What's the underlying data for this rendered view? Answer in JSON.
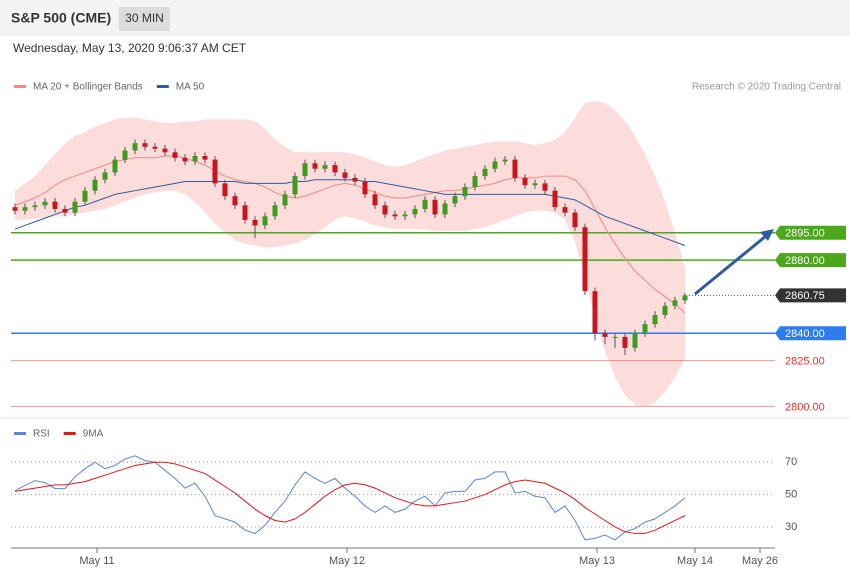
{
  "header": {
    "title": "S&P 500 (CME)",
    "interval": "30 MIN",
    "timestamp": "Wednesday, May 13, 2020 9:06:37 AM CET",
    "credit": "Research © 2020 Trading Central"
  },
  "chart_data": [
    {
      "type": "candlestick",
      "up_color": "#3f9a1e",
      "down_color": "#c8141e",
      "open": [
        2909,
        2907,
        2909,
        2910,
        2912,
        2908,
        2906,
        2912,
        2918,
        2924,
        2928,
        2935,
        2940,
        2944,
        2942,
        2941,
        2939,
        2936,
        2934,
        2937,
        2935,
        2922,
        2915,
        2910,
        2902,
        2899,
        2904,
        2910,
        2916,
        2926,
        2933,
        2930,
        2932,
        2928,
        2925,
        2923,
        2916,
        2910,
        2905,
        2904,
        2905,
        2908,
        2913,
        2905,
        2911,
        2915,
        2920,
        2926,
        2930,
        2934,
        2935,
        2925,
        2921,
        2922,
        2918,
        2909,
        2906,
        2898,
        2863,
        2840,
        2838,
        2838,
        2832,
        2840,
        2845,
        2850,
        2855,
        2858
      ],
      "high": [
        2911,
        2911,
        2912,
        2914,
        2914,
        2910,
        2914,
        2920,
        2926,
        2930,
        2937,
        2942,
        2946,
        2946,
        2944,
        2943,
        2941,
        2938,
        2939,
        2939,
        2937,
        2924,
        2917,
        2912,
        2904,
        2906,
        2912,
        2918,
        2928,
        2935,
        2935,
        2934,
        2934,
        2930,
        2927,
        2925,
        2918,
        2912,
        2907,
        2907,
        2910,
        2915,
        2915,
        2913,
        2917,
        2922,
        2928,
        2932,
        2936,
        2937,
        2937,
        2927,
        2924,
        2924,
        2920,
        2911,
        2908,
        2900,
        2865,
        2842,
        2840,
        2840,
        2842,
        2847,
        2852,
        2857,
        2860,
        2862
      ],
      "low": [
        2905,
        2905,
        2907,
        2908,
        2906,
        2904,
        2904,
        2910,
        2916,
        2922,
        2926,
        2933,
        2938,
        2940,
        2939,
        2937,
        2934,
        2932,
        2932,
        2933,
        2920,
        2913,
        2908,
        2900,
        2892,
        2897,
        2902,
        2908,
        2914,
        2924,
        2928,
        2928,
        2926,
        2923,
        2921,
        2914,
        2908,
        2903,
        2902,
        2902,
        2903,
        2906,
        2903,
        2903,
        2909,
        2913,
        2918,
        2924,
        2928,
        2932,
        2923,
        2919,
        2919,
        2916,
        2907,
        2904,
        2896,
        2861,
        2836,
        2834,
        2832,
        2828,
        2830,
        2838,
        2843,
        2848,
        2853,
        2856
      ],
      "close": [
        2907,
        2909,
        2910,
        2912,
        2908,
        2906,
        2912,
        2918,
        2924,
        2928,
        2935,
        2940,
        2944,
        2942,
        2941,
        2939,
        2936,
        2934,
        2937,
        2935,
        2922,
        2915,
        2910,
        2902,
        2899,
        2904,
        2910,
        2916,
        2926,
        2933,
        2930,
        2932,
        2928,
        2925,
        2923,
        2916,
        2910,
        2905,
        2904,
        2905,
        2908,
        2913,
        2905,
        2911,
        2915,
        2920,
        2926,
        2930,
        2934,
        2935,
        2925,
        2921,
        2922,
        2918,
        2909,
        2906,
        2898,
        2863,
        2840,
        2838,
        2838,
        2832,
        2840,
        2845,
        2850,
        2855,
        2858,
        2860.75
      ],
      "series": [
        {
          "name": "MA 20 + Bollinger Bands",
          "color": "#f08a84",
          "band_color": "#fddcdc",
          "values": [
            2910,
            2912,
            2914,
            2917,
            2921,
            2924,
            2926,
            2928,
            2930,
            2932,
            2934,
            2935,
            2936,
            2936,
            2936,
            2937,
            2937,
            2936,
            2934,
            2932,
            2929,
            2926,
            2924,
            2923,
            2922,
            2920,
            2917,
            2915,
            2914,
            2915,
            2917,
            2919,
            2921,
            2922,
            2921,
            2919,
            2917,
            2915,
            2914,
            2914,
            2915,
            2916,
            2917,
            2918,
            2918,
            2919,
            2920,
            2921,
            2922,
            2924,
            2925,
            2925,
            2925,
            2926,
            2926,
            2926,
            2924,
            2918,
            2908,
            2898,
            2889,
            2881,
            2874,
            2869,
            2864,
            2860,
            2856,
            2851
          ],
          "upper": [
            2918,
            2922,
            2926,
            2932,
            2938,
            2944,
            2948,
            2950,
            2953,
            2955,
            2957,
            2958,
            2958,
            2957,
            2956,
            2955,
            2955,
            2956,
            2956,
            2957,
            2957,
            2957,
            2957,
            2957,
            2956,
            2952,
            2946,
            2942,
            2939,
            2939,
            2939,
            2939,
            2939,
            2939,
            2938,
            2936,
            2934,
            2932,
            2931,
            2932,
            2934,
            2936,
            2938,
            2940,
            2941,
            2942,
            2943,
            2944,
            2945,
            2945,
            2945,
            2944,
            2943,
            2944,
            2946,
            2950,
            2958,
            2966,
            2967,
            2966,
            2962,
            2956,
            2948,
            2938,
            2926,
            2912,
            2895,
            2876
          ],
          "lower": [
            2902,
            2902,
            2903,
            2903,
            2904,
            2904,
            2905,
            2906,
            2907,
            2908,
            2910,
            2912,
            2914,
            2916,
            2917,
            2918,
            2918,
            2916,
            2912,
            2906,
            2900,
            2895,
            2891,
            2889,
            2888,
            2887,
            2887,
            2888,
            2889,
            2891,
            2894,
            2898,
            2902,
            2904,
            2903,
            2901,
            2899,
            2898,
            2897,
            2897,
            2897,
            2897,
            2896,
            2896,
            2896,
            2896,
            2897,
            2898,
            2900,
            2902,
            2904,
            2906,
            2907,
            2907,
            2906,
            2902,
            2890,
            2870,
            2848,
            2830,
            2816,
            2806,
            2801,
            2800,
            2802,
            2808,
            2816,
            2826
          ]
        },
        {
          "name": "MA 50",
          "color": "#2d5c9e",
          "values": [
            2897,
            2899,
            2901,
            2903,
            2905,
            2907,
            2909,
            2910,
            2912,
            2914,
            2916,
            2917,
            2918,
            2919,
            2920,
            2921,
            2922,
            2923,
            2923,
            2923,
            2923,
            2923,
            2923,
            2922,
            2922,
            2922,
            2922,
            2922,
            2923,
            2923,
            2924,
            2924,
            2924,
            2924,
            2924,
            2923,
            2923,
            2922,
            2921,
            2920,
            2919,
            2918,
            2917,
            2916,
            2916,
            2916,
            2916,
            2916,
            2916,
            2916,
            2916,
            2916,
            2916,
            2916,
            2915,
            2914,
            2913,
            2910,
            2907,
            2904,
            2902,
            2900,
            2898,
            2896,
            2894,
            2892,
            2890,
            2888
          ]
        }
      ],
      "levels": [
        {
          "value": 2895,
          "label": "2895.00",
          "color": "#4aa81a",
          "style": "box"
        },
        {
          "value": 2880,
          "label": "2880.00",
          "color": "#4aa81a",
          "style": "box"
        },
        {
          "value": 2860.75,
          "label": "2860.75",
          "color": "#333333",
          "style": "dotted"
        },
        {
          "value": 2840,
          "label": "2840.00",
          "color": "#2f7bf0",
          "style": "box"
        },
        {
          "value": 2825,
          "label": "2825.00",
          "color": "#e8322c",
          "style": "text"
        },
        {
          "value": 2800,
          "label": "2800.00",
          "color": "#e8322c",
          "style": "text"
        }
      ],
      "ylim": [
        2798,
        2972
      ],
      "xlim": [
        -0.4,
        76
      ]
    },
    {
      "type": "line",
      "series": [
        {
          "name": "RSI",
          "color": "#5b86d8",
          "values": [
            52.5,
            55.6,
            58.6,
            57.4,
            53.7,
            53.7,
            61,
            66,
            70,
            66,
            68,
            72,
            74,
            71,
            70,
            65,
            60,
            54,
            57,
            49,
            37,
            35,
            33,
            28,
            26,
            31,
            39,
            46,
            56,
            64,
            60,
            57,
            60,
            54,
            49,
            43,
            39,
            43,
            39,
            41,
            46,
            49,
            43,
            51,
            52,
            52,
            59,
            60,
            64,
            64,
            51,
            52,
            49,
            48,
            39,
            43,
            34,
            22,
            23,
            25,
            22,
            27,
            29,
            33,
            35,
            39,
            43,
            48
          ]
        },
        {
          "name": "9MA",
          "color": "#e01818",
          "values": [
            52,
            53,
            54,
            55,
            56,
            56,
            57,
            58,
            60,
            62,
            64,
            66,
            68,
            69,
            70,
            70,
            69,
            67,
            65,
            63,
            59,
            55,
            51,
            46,
            41,
            37,
            34,
            33,
            35,
            39,
            44,
            49,
            53,
            56,
            57,
            56,
            54,
            51,
            48,
            46,
            44,
            43,
            43,
            44,
            45,
            46,
            48,
            50,
            53,
            56,
            58,
            59,
            58,
            57,
            54,
            51,
            47,
            42,
            38,
            34,
            30,
            27,
            26,
            26,
            28,
            31,
            34,
            37
          ]
        }
      ],
      "ylim": [
        17,
        93
      ],
      "yticks": [
        30,
        50,
        70
      ],
      "xlim": [
        -0.4,
        76
      ],
      "xticks": [
        {
          "value": 8.2,
          "label": "May 11"
        },
        {
          "value": 33.2,
          "label": "May 12"
        },
        {
          "value": 58.2,
          "label": "May 13"
        },
        {
          "value": 68,
          "label": "May 14"
        },
        {
          "value": 74.5,
          "label": "May 26"
        }
      ]
    }
  ]
}
